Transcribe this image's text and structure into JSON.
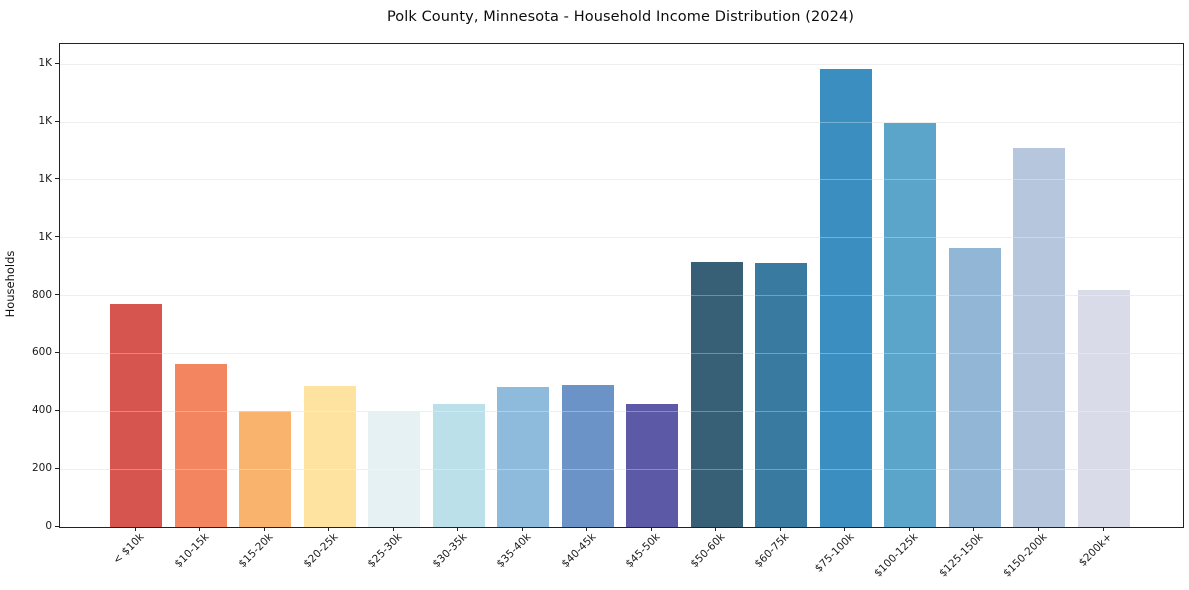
{
  "chart_data": {
    "type": "bar",
    "title": "Polk County, Minnesota - Household Income Distribution (2024)",
    "xlabel": "",
    "ylabel": "Households",
    "categories": [
      "< $10k",
      "$10-15k",
      "$15-20k",
      "$20-25k",
      "$25-30k",
      "$30-35k",
      "$35-40k",
      "$40-45k",
      "$45-50k",
      "$50-60k",
      "$60-75k",
      "$75-100k",
      "$100-125k",
      "$125-150k",
      "$150-200k",
      "$200k+"
    ],
    "values": [
      772,
      563,
      400,
      486,
      398,
      424,
      483,
      490,
      427,
      916,
      913,
      1585,
      1398,
      963,
      1309,
      820
    ],
    "bar_colors": [
      "#d6554f",
      "#f38560",
      "#f9b36c",
      "#fde39f",
      "#e6f1f3",
      "#bce0ea",
      "#8ebbdb",
      "#6b93c8",
      "#5c59a6",
      "#375f76",
      "#387aa0",
      "#3a8ec0",
      "#5ba4ca",
      "#92b7d6",
      "#b6c7dd",
      "#d9dbe8"
    ],
    "ylim": [
      0,
      1670
    ],
    "yticks": [
      {
        "v": 0,
        "label": "0"
      },
      {
        "v": 200,
        "label": "200"
      },
      {
        "v": 400,
        "label": "400"
      },
      {
        "v": 600,
        "label": "600"
      },
      {
        "v": 800,
        "label": "800"
      },
      {
        "v": 1000,
        "label": "1K"
      },
      {
        "v": 1200,
        "label": "1K"
      },
      {
        "v": 1400,
        "label": "1K"
      },
      {
        "v": 1600,
        "label": "1K"
      }
    ],
    "grid": "horizontal",
    "legend_position": "none",
    "plot_background": "#ffffff",
    "spine_color": "#222222",
    "gridline_color": "#e8e8e8"
  }
}
